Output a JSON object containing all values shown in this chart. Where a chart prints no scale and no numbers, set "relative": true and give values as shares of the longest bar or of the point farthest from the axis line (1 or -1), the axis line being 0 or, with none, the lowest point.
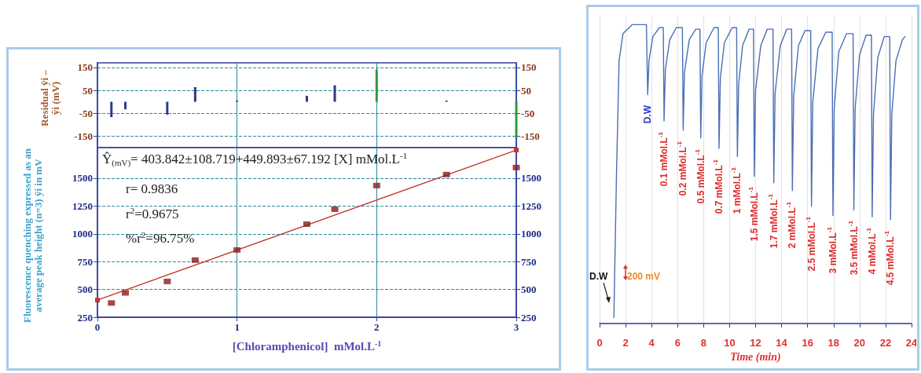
{
  "chart_data": [
    {
      "type": "bar",
      "ylabel": "Residual ȳi – ŷi (mV)",
      "x": [
        0.1,
        0.2,
        0.5,
        0.7,
        1,
        1.5,
        1.7,
        2,
        2.5,
        3
      ],
      "values": [
        -67,
        -33,
        -56,
        64,
        5,
        26,
        72,
        141,
        5,
        -157
      ],
      "colors": [
        "#2b3a8c",
        "#2b3a8c",
        "#2b3a8c",
        "#2b3a8c",
        "#2b3a8c",
        "#2b3a8c",
        "#2b3a8c",
        "#2e9a3a",
        "#2b3a8c",
        "#2e9a3a"
      ],
      "xlim": [
        0,
        3
      ],
      "xticks": [
        0,
        1,
        2,
        3
      ],
      "ylim": [
        -200,
        170
      ],
      "yticks": [
        -150,
        -50,
        50,
        150
      ],
      "y2lim": [
        -200,
        170
      ],
      "y2ticks": [
        -150,
        -50,
        50,
        150
      ],
      "tick_labels": "y",
      "grid": true
    },
    {
      "type": "scatter",
      "xlabel": "[Chloramphenicol]  mMol.L$^{-1}$",
      "ylabel": "Fluorescence quenching expressed as an average peak height (n=3) ȳi in mV",
      "annotations": [
        "Ŷ$_{(mV)}$= 403.842±108.719+449.893±67.192 [X] mMol.L$^{-1}$",
        "r= 0.9836",
        "r$^{2}$=0.9675",
        "%r$^{2}$=96.75%"
      ],
      "series": [
        {
          "type": "scatter",
          "color": "#8b1a1a",
          "x": [
            0.1,
            0.2,
            0.5,
            0.7,
            1,
            1.5,
            1.7,
            2,
            2.5,
            3
          ],
          "values": [
            378,
            469,
            572,
            764,
            855,
            1087,
            1221,
            1434,
            1533,
            1596
          ]
        },
        {
          "type": "line",
          "color": "#c0392b",
          "x": [
            0,
            3
          ],
          "values": [
            403.842,
            1753.521
          ]
        }
      ],
      "marker": "square",
      "xlim": [
        0,
        3
      ],
      "xticks": [
        0,
        1,
        2,
        3
      ],
      "ylim": [
        250,
        1775
      ],
      "yticks": [
        250,
        500,
        750,
        1000,
        1250,
        1500
      ],
      "y2lim": [
        250,
        1775
      ],
      "y2ticks": [
        250,
        500,
        750,
        1000,
        1250,
        1500
      ],
      "grid": true
    },
    {
      "type": "line",
      "relative": true,
      "xlabel": "Time (min)",
      "color": "#4a6fb5",
      "marker": "none",
      "grid": "x",
      "annotations": [
        "D.W",
        "200 mV",
        {
          "text": "D.W",
          "x": 3.7,
          "y": 0.766
        },
        {
          "text": "0.1 mMol.L$^{-1}$",
          "x": 4.96,
          "y": 0.678
        },
        {
          "text": "0.2 mMol.L$^{-1}$",
          "x": 6.43,
          "y": 0.647
        },
        {
          "text": "0.5 mMol.L$^{-1}$",
          "x": 7.78,
          "y": 0.621
        },
        {
          "text": "0.7 mMol.L$^{-1}$",
          "x": 9.19,
          "y": 0.586
        },
        {
          "text": "1 mMol.L$^{-1}$",
          "x": 10.6,
          "y": 0.559
        },
        {
          "text": "1.5 mMol.L$^{-1}$",
          "x": 11.9,
          "y": 0.493
        },
        {
          "text": "1.7 mMol.L$^{-1}$",
          "x": 13.4,
          "y": 0.471
        },
        {
          "text": "2 mMol.L$^{-1}$",
          "x": 14.83,
          "y": 0.445
        },
        {
          "text": "2.5 mMol.L$^{-1}$",
          "x": 16.3,
          "y": 0.393
        },
        {
          "text": "3 mMol.L$^{-1}$",
          "x": 17.95,
          "y": 0.361
        },
        {
          "text": "3.5 mMol.L$^{-1}$",
          "x": 19.56,
          "y": 0.38
        },
        {
          "text": "4 mMol.L$^{-1}$",
          "x": 20.97,
          "y": 0.357
        },
        {
          "text": "4.5 mMol.L$^{-1}$",
          "x": 22.38,
          "y": 0.348
        }
      ],
      "x": [
        1.1,
        1.3,
        1.5,
        1.8,
        2.5,
        3.6,
        3.7,
        3.8,
        4.1,
        4.6,
        4.9,
        4.96,
        5.06,
        5.4,
        5.9,
        6.37,
        6.43,
        6.53,
        6.9,
        7.4,
        7.72,
        7.78,
        7.88,
        8.2,
        8.8,
        9.13,
        9.19,
        9.29,
        9.6,
        10.2,
        10.54,
        10.6,
        10.7,
        11,
        11.5,
        11.84,
        11.9,
        12,
        12.4,
        12.9,
        13.34,
        13.4,
        13.5,
        13.9,
        14.4,
        14.77,
        14.83,
        14.93,
        15.3,
        15.8,
        16.24,
        16.3,
        16.4,
        16.8,
        17.4,
        17.89,
        17.95,
        18.05,
        18.4,
        19,
        19.5,
        19.56,
        19.66,
        20,
        20.5,
        20.91,
        20.97,
        21.07,
        21.4,
        21.9,
        22.32,
        22.38,
        22.48,
        22.8,
        23.3,
        23.5
      ],
      "values": [
        0.02,
        0.5,
        0.88,
        0.97,
        1,
        1,
        0.766,
        0.88,
        0.96,
        0.99,
        0.99,
        0.678,
        0.85,
        0.95,
        0.99,
        0.99,
        0.647,
        0.84,
        0.95,
        0.985,
        0.985,
        0.621,
        0.83,
        0.94,
        0.99,
        0.99,
        0.586,
        0.82,
        0.94,
        0.99,
        0.99,
        0.559,
        0.8,
        0.93,
        0.985,
        0.985,
        0.493,
        0.78,
        0.93,
        0.985,
        0.985,
        0.471,
        0.77,
        0.93,
        0.985,
        0.985,
        0.445,
        0.76,
        0.93,
        0.98,
        0.98,
        0.393,
        0.74,
        0.92,
        0.975,
        0.975,
        0.361,
        0.72,
        0.91,
        0.97,
        0.97,
        0.38,
        0.72,
        0.9,
        0.965,
        0.965,
        0.357,
        0.7,
        0.89,
        0.96,
        0.96,
        0.348,
        0.7,
        0.88,
        0.95,
        0.96
      ],
      "xlim": [
        0,
        24
      ],
      "xticks": [
        0,
        2,
        4,
        6,
        8,
        10,
        12,
        14,
        16,
        18,
        20,
        22,
        24
      ]
    }
  ]
}
